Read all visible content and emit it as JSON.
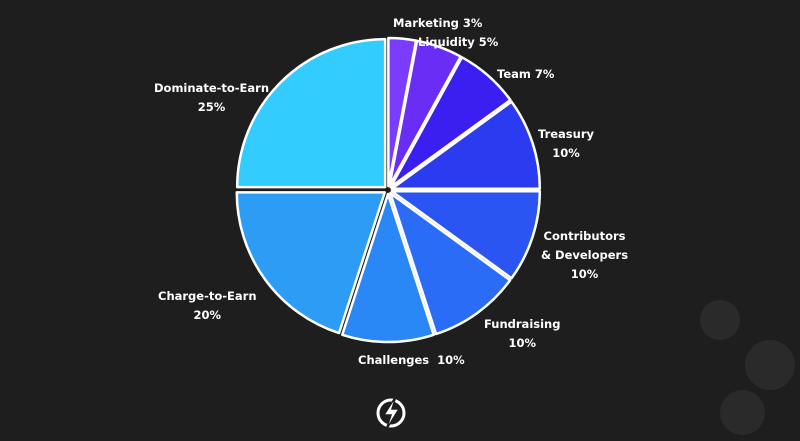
{
  "chart_data": {
    "type": "pie",
    "start_angle": "12 o'clock",
    "direction": "clockwise",
    "slices": [
      {
        "name": "Marketing",
        "value": 3,
        "label": "Marketing 3%",
        "color": "#7a3cff"
      },
      {
        "name": "Liquidity",
        "value": 5,
        "label": "Liquidity 5%",
        "color": "#6a2df6"
      },
      {
        "name": "Team",
        "value": 7,
        "label": "Team 7%",
        "color": "#3a1ff0"
      },
      {
        "name": "Treasury",
        "value": 10,
        "label": "Treasury",
        "pct": "10%",
        "color": "#2b3bf0"
      },
      {
        "name": "Contributors & Developers",
        "value": 10,
        "label": "Contributors",
        "label2": "& Developers",
        "pct": "10%",
        "color": "#2a55f2"
      },
      {
        "name": "Fundraising",
        "value": 10,
        "label": "Fundraising",
        "pct": "10%",
        "color": "#2a6cf6"
      },
      {
        "name": "Challenges",
        "value": 10,
        "label": "Challenges  10%",
        "color": "#2a88f6"
      },
      {
        "name": "Charge-to-Earn",
        "value": 20,
        "label": "Charge-to-Earn",
        "pct": "20%",
        "color": "#2d9cf5"
      },
      {
        "name": "Dominate-to-Earn",
        "value": 25,
        "label": "Dominate-to-Earn",
        "pct": "25%",
        "color": "#33ccff"
      }
    ],
    "stroke_color": "#ffffff",
    "background": "#1e1e1e"
  },
  "logo": {
    "icon": "lightning-bolt-circle-icon"
  }
}
